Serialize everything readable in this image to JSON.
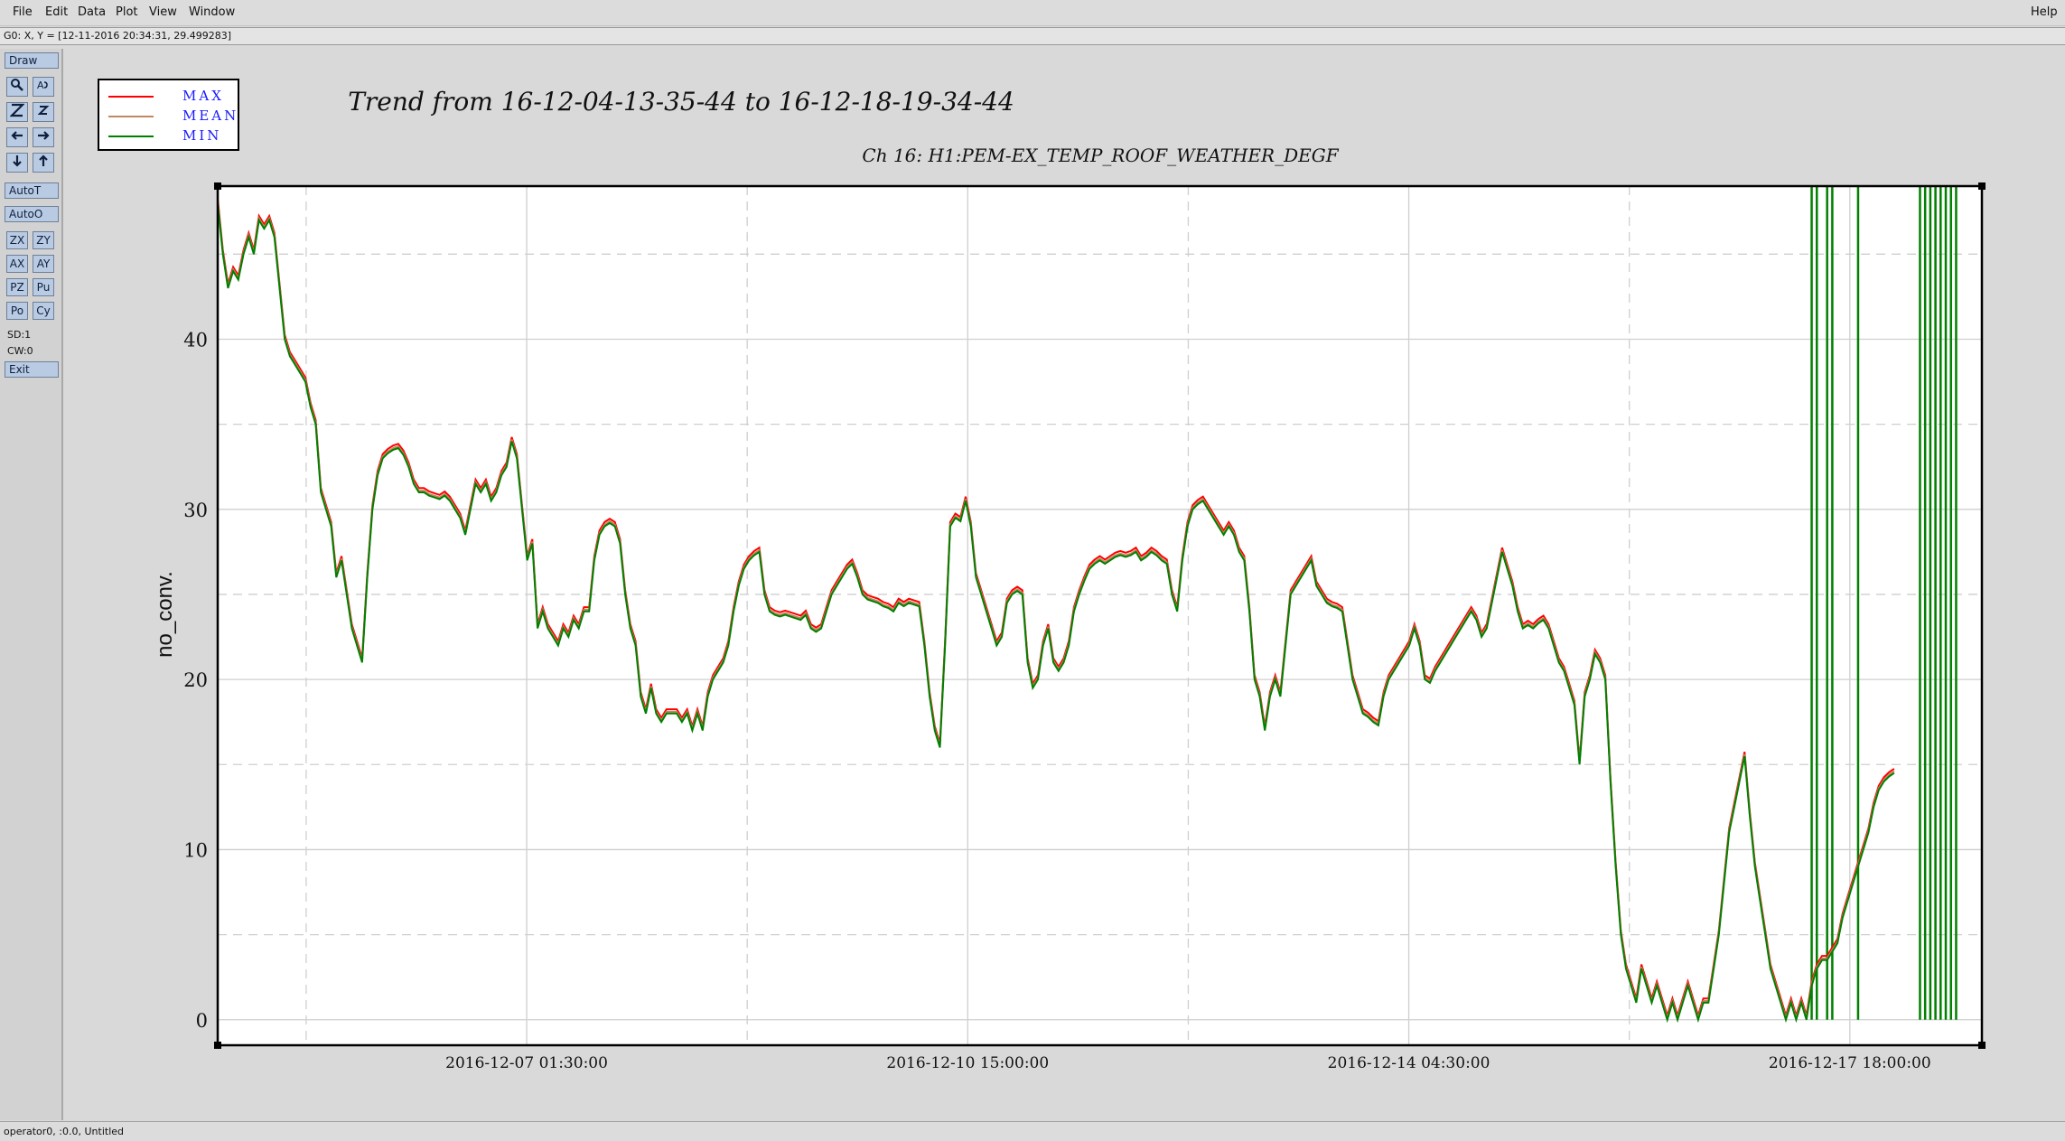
{
  "menubar": {
    "items": [
      "File",
      "Edit",
      "Data",
      "Plot",
      "View",
      "Window"
    ],
    "help": "Help"
  },
  "coord_readout": "G0: X, Y = [12-11-2016 20:34:31, 29.499283]",
  "toolbar": {
    "draw": "Draw",
    "autot": "AutoT",
    "autoo": "AutoO",
    "small_buttons": [
      "ZX",
      "ZY",
      "AX",
      "AY",
      "PZ",
      "Pu",
      "Po",
      "Cy"
    ],
    "sd": "SD:1",
    "cw": "CW:0",
    "exit": "Exit",
    "icon_names": [
      "magnifier-icon",
      "text-cursor-icon",
      "zoom-z-large-icon",
      "zoom-z-small-icon",
      "arrow-left-icon",
      "arrow-right-icon",
      "arrow-down-icon",
      "arrow-up-icon"
    ]
  },
  "status": "operator0, :0.0, Untitled",
  "colors": {
    "max": "#ff0000",
    "mean": "#c08860",
    "min": "#008000",
    "toolbar_button": "#b9cbe3",
    "legend_text": "#1a1aff"
  },
  "chart_data": {
    "type": "line",
    "title": "Trend from 16-12-04-13-35-44 to 16-12-18-19-34-44",
    "subtitle": "Ch 16: H1:PEM-EX_TEMP_ROOF_WEATHER_DEGF",
    "xlabel": "",
    "ylabel": "no_conv.",
    "ylim": [
      -1.5,
      49
    ],
    "yticks": [
      0,
      10,
      20,
      30,
      40
    ],
    "xticks": [
      "2016-12-07 01:30:00",
      "2016-12-10 15:00:00",
      "2016-12-14 04:30:00",
      "2016-12-17 18:00:00"
    ],
    "x_unit": "hours from 2016-12-04 13:35:44",
    "x_range_hours": [
      0,
      342
    ],
    "xtick_hours": [
      59.9,
      145.4,
      230.9,
      316.4
    ],
    "grid": true,
    "legend_position": "top-left",
    "legend": [
      "MAX",
      "MEAN",
      "MIN"
    ],
    "series_xy": {
      "name": "MIN",
      "points": [
        [
          0,
          48
        ],
        [
          1,
          45
        ],
        [
          2,
          43
        ],
        [
          3,
          44
        ],
        [
          4,
          43.5
        ],
        [
          5,
          45
        ],
        [
          6,
          46
        ],
        [
          7,
          45
        ],
        [
          8,
          47
        ],
        [
          9,
          46.5
        ],
        [
          10,
          47
        ],
        [
          11,
          46
        ],
        [
          12,
          43
        ],
        [
          13,
          40
        ],
        [
          14,
          39
        ],
        [
          15,
          38.5
        ],
        [
          16,
          38
        ],
        [
          17,
          37.5
        ],
        [
          18,
          36
        ],
        [
          19,
          35
        ],
        [
          20,
          31
        ],
        [
          21,
          30
        ],
        [
          22,
          29
        ],
        [
          23,
          26
        ],
        [
          24,
          27
        ],
        [
          25,
          25
        ],
        [
          26,
          23
        ],
        [
          27,
          22
        ],
        [
          28,
          21
        ],
        [
          29,
          26
        ],
        [
          30,
          30
        ],
        [
          31,
          32
        ],
        [
          32,
          33
        ],
        [
          33,
          33.3
        ],
        [
          34,
          33.5
        ],
        [
          35,
          33.6
        ],
        [
          36,
          33.2
        ],
        [
          37,
          32.5
        ],
        [
          38,
          31.5
        ],
        [
          39,
          31
        ],
        [
          40,
          31
        ],
        [
          41,
          30.8
        ],
        [
          42,
          30.7
        ],
        [
          43,
          30.6
        ],
        [
          44,
          30.8
        ],
        [
          45,
          30.5
        ],
        [
          46,
          30
        ],
        [
          47,
          29.5
        ],
        [
          48,
          28.5
        ],
        [
          49,
          30
        ],
        [
          50,
          31.5
        ],
        [
          51,
          31
        ],
        [
          52,
          31.5
        ],
        [
          53,
          30.5
        ],
        [
          54,
          31
        ],
        [
          55,
          32
        ],
        [
          56,
          32.5
        ],
        [
          57,
          34
        ],
        [
          58,
          33
        ],
        [
          59,
          30
        ],
        [
          60,
          27
        ],
        [
          61,
          28
        ],
        [
          62,
          23
        ],
        [
          63,
          24
        ],
        [
          64,
          23
        ],
        [
          65,
          22.5
        ],
        [
          66,
          22
        ],
        [
          67,
          23
        ],
        [
          68,
          22.5
        ],
        [
          69,
          23.5
        ],
        [
          70,
          23
        ],
        [
          71,
          24
        ],
        [
          72,
          24
        ],
        [
          73,
          27
        ],
        [
          74,
          28.5
        ],
        [
          75,
          29
        ],
        [
          76,
          29.2
        ],
        [
          77,
          29
        ],
        [
          78,
          28
        ],
        [
          79,
          25
        ],
        [
          80,
          23
        ],
        [
          81,
          22
        ],
        [
          82,
          19
        ],
        [
          83,
          18
        ],
        [
          84,
          19.5
        ],
        [
          85,
          18
        ],
        [
          86,
          17.5
        ],
        [
          87,
          18
        ],
        [
          88,
          18
        ],
        [
          89,
          18
        ],
        [
          90,
          17.5
        ],
        [
          91,
          18
        ],
        [
          92,
          17
        ],
        [
          93,
          18
        ],
        [
          94,
          17
        ],
        [
          95,
          19
        ],
        [
          96,
          20
        ],
        [
          97,
          20.5
        ],
        [
          98,
          21
        ],
        [
          99,
          22
        ],
        [
          100,
          24
        ],
        [
          101,
          25.5
        ],
        [
          102,
          26.5
        ],
        [
          103,
          27
        ],
        [
          104,
          27.3
        ],
        [
          105,
          27.5
        ],
        [
          106,
          25
        ],
        [
          107,
          24
        ],
        [
          108,
          23.8
        ],
        [
          109,
          23.7
        ],
        [
          110,
          23.8
        ],
        [
          111,
          23.7
        ],
        [
          112,
          23.6
        ],
        [
          113,
          23.5
        ],
        [
          114,
          23.8
        ],
        [
          115,
          23
        ],
        [
          116,
          22.8
        ],
        [
          117,
          23
        ],
        [
          118,
          24
        ],
        [
          119,
          25
        ],
        [
          120,
          25.5
        ],
        [
          121,
          26
        ],
        [
          122,
          26.5
        ],
        [
          123,
          26.8
        ],
        [
          124,
          26
        ],
        [
          125,
          25
        ],
        [
          126,
          24.7
        ],
        [
          127,
          24.6
        ],
        [
          128,
          24.5
        ],
        [
          129,
          24.3
        ],
        [
          130,
          24.2
        ],
        [
          131,
          24
        ],
        [
          132,
          24.5
        ],
        [
          133,
          24.3
        ],
        [
          134,
          24.5
        ],
        [
          135,
          24.4
        ],
        [
          136,
          24.3
        ],
        [
          137,
          22
        ],
        [
          138,
          19
        ],
        [
          139,
          17
        ],
        [
          140,
          16
        ],
        [
          141,
          22
        ],
        [
          142,
          29
        ],
        [
          143,
          29.5
        ],
        [
          144,
          29.3
        ],
        [
          145,
          30.5
        ],
        [
          146,
          29
        ],
        [
          147,
          26
        ],
        [
          148,
          25
        ],
        [
          149,
          24
        ],
        [
          150,
          23
        ],
        [
          151,
          22
        ],
        [
          152,
          22.5
        ],
        [
          153,
          24.5
        ],
        [
          154,
          25
        ],
        [
          155,
          25.2
        ],
        [
          156,
          25
        ],
        [
          157,
          21
        ],
        [
          158,
          19.5
        ],
        [
          159,
          20
        ],
        [
          160,
          22
        ],
        [
          161,
          23
        ],
        [
          162,
          21
        ],
        [
          163,
          20.5
        ],
        [
          164,
          21
        ],
        [
          165,
          22
        ],
        [
          166,
          24
        ],
        [
          167,
          25
        ],
        [
          168,
          25.8
        ],
        [
          169,
          26.5
        ],
        [
          170,
          26.8
        ],
        [
          171,
          27
        ],
        [
          172,
          26.8
        ],
        [
          173,
          27
        ],
        [
          174,
          27.2
        ],
        [
          175,
          27.3
        ],
        [
          176,
          27.2
        ],
        [
          177,
          27.3
        ],
        [
          178,
          27.5
        ],
        [
          179,
          27
        ],
        [
          180,
          27.2
        ],
        [
          181,
          27.5
        ],
        [
          182,
          27.3
        ],
        [
          183,
          27
        ],
        [
          184,
          26.8
        ],
        [
          185,
          25
        ],
        [
          186,
          24
        ],
        [
          187,
          27
        ],
        [
          188,
          29
        ],
        [
          189,
          30
        ],
        [
          190,
          30.3
        ],
        [
          191,
          30.5
        ],
        [
          192,
          30
        ],
        [
          193,
          29.5
        ],
        [
          194,
          29
        ],
        [
          195,
          28.5
        ],
        [
          196,
          29
        ],
        [
          197,
          28.5
        ],
        [
          198,
          27.5
        ],
        [
          199,
          27
        ],
        [
          200,
          24
        ],
        [
          201,
          20
        ],
        [
          202,
          19
        ],
        [
          203,
          17
        ],
        [
          204,
          19
        ],
        [
          205,
          20
        ],
        [
          206,
          19
        ],
        [
          207,
          22
        ],
        [
          208,
          25
        ],
        [
          209,
          25.5
        ],
        [
          210,
          26
        ],
        [
          211,
          26.5
        ],
        [
          212,
          27
        ],
        [
          213,
          25.5
        ],
        [
          214,
          25
        ],
        [
          215,
          24.5
        ],
        [
          216,
          24.3
        ],
        [
          217,
          24.2
        ],
        [
          218,
          24
        ],
        [
          219,
          22
        ],
        [
          220,
          20
        ],
        [
          221,
          19
        ],
        [
          222,
          18
        ],
        [
          223,
          17.8
        ],
        [
          224,
          17.5
        ],
        [
          225,
          17.3
        ],
        [
          226,
          19
        ],
        [
          227,
          20
        ],
        [
          228,
          20.5
        ],
        [
          229,
          21
        ],
        [
          230,
          21.5
        ],
        [
          231,
          22
        ],
        [
          232,
          23
        ],
        [
          233,
          22
        ],
        [
          234,
          20
        ],
        [
          235,
          19.8
        ],
        [
          236,
          20.5
        ],
        [
          237,
          21
        ],
        [
          238,
          21.5
        ],
        [
          239,
          22
        ],
        [
          240,
          22.5
        ],
        [
          241,
          23
        ],
        [
          242,
          23.5
        ],
        [
          243,
          24
        ],
        [
          244,
          23.5
        ],
        [
          245,
          22.5
        ],
        [
          246,
          23
        ],
        [
          247,
          24.5
        ],
        [
          248,
          26
        ],
        [
          249,
          27.5
        ],
        [
          250,
          26.5
        ],
        [
          251,
          25.5
        ],
        [
          252,
          24
        ],
        [
          253,
          23
        ],
        [
          254,
          23.2
        ],
        [
          255,
          23
        ],
        [
          256,
          23.3
        ],
        [
          257,
          23.5
        ],
        [
          258,
          23
        ],
        [
          259,
          22
        ],
        [
          260,
          21
        ],
        [
          261,
          20.5
        ],
        [
          262,
          19.5
        ],
        [
          263,
          18.5
        ],
        [
          264,
          15
        ],
        [
          265,
          19
        ],
        [
          266,
          20
        ],
        [
          267,
          21.5
        ],
        [
          268,
          21
        ],
        [
          269,
          20
        ],
        [
          270,
          14
        ],
        [
          271,
          9
        ],
        [
          272,
          5
        ],
        [
          273,
          3
        ],
        [
          274,
          2
        ],
        [
          275,
          1
        ],
        [
          276,
          3
        ],
        [
          277,
          2
        ],
        [
          278,
          1
        ],
        [
          279,
          2
        ],
        [
          280,
          1
        ],
        [
          281,
          0
        ],
        [
          282,
          1
        ],
        [
          283,
          0
        ],
        [
          284,
          1
        ],
        [
          285,
          2
        ],
        [
          286,
          1
        ],
        [
          287,
          0
        ],
        [
          288,
          1
        ],
        [
          289,
          1
        ],
        [
          290,
          3
        ],
        [
          291,
          5
        ],
        [
          292,
          8
        ],
        [
          293,
          11
        ],
        [
          294,
          12.5
        ],
        [
          295,
          14
        ],
        [
          296,
          15.5
        ],
        [
          297,
          12
        ],
        [
          298,
          9
        ],
        [
          299,
          7
        ],
        [
          300,
          5
        ],
        [
          301,
          3
        ],
        [
          302,
          2
        ],
        [
          303,
          1
        ],
        [
          304,
          0
        ],
        [
          305,
          1
        ],
        [
          306,
          0
        ],
        [
          307,
          1
        ],
        [
          308,
          0
        ],
        [
          309,
          2
        ],
        [
          310,
          3
        ],
        [
          311,
          3.5
        ],
        [
          312,
          3.5
        ],
        [
          313,
          4
        ],
        [
          314,
          4.5
        ],
        [
          315,
          6
        ],
        [
          316,
          7
        ],
        [
          317,
          8
        ],
        [
          318,
          9
        ],
        [
          319,
          10
        ],
        [
          320,
          11
        ],
        [
          321,
          12.5
        ],
        [
          322,
          13.5
        ],
        [
          323,
          14
        ],
        [
          324,
          14.3
        ],
        [
          325,
          14.5
        ]
      ]
    },
    "dropout_spikes_hours": [
      309,
      310,
      312,
      313,
      318,
      330,
      331,
      332,
      333,
      334,
      335,
      336,
      337
    ]
  }
}
